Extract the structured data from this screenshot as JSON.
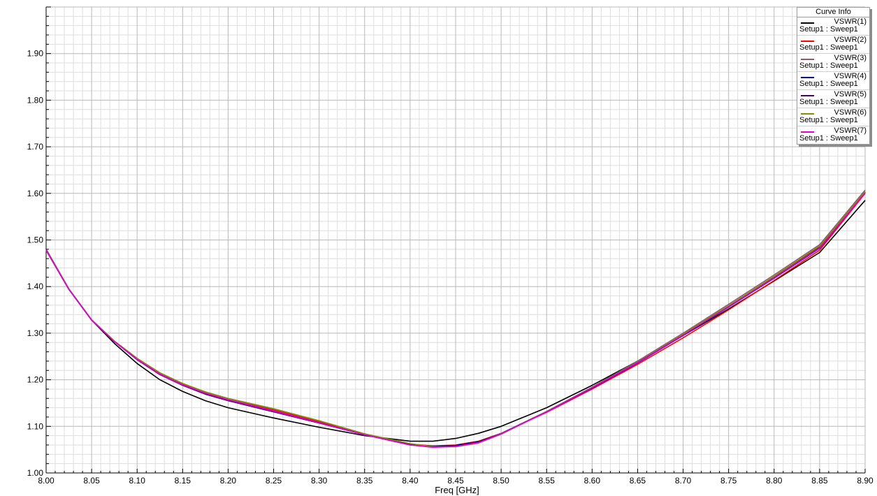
{
  "chart_data": {
    "type": "line",
    "xlabel": "Freq [GHz]",
    "ylabel": "",
    "xlim": [
      8.0,
      8.9
    ],
    "ylim": [
      1.0,
      2.0
    ],
    "x_ticks": [
      "8.00",
      "8.05",
      "8.10",
      "8.15",
      "8.20",
      "8.25",
      "8.30",
      "8.35",
      "8.40",
      "8.45",
      "8.50",
      "8.55",
      "8.60",
      "8.65",
      "8.70",
      "8.75",
      "8.80",
      "8.85",
      "8.90"
    ],
    "y_ticks": [
      "1.00",
      "1.10",
      "1.20",
      "1.30",
      "1.40",
      "1.50",
      "1.60",
      "1.70",
      "1.80",
      "1.90"
    ],
    "grid": true,
    "legend": {
      "title": "Curve Info",
      "position": "top-right"
    },
    "x": [
      8.0,
      8.025,
      8.05,
      8.075,
      8.1,
      8.125,
      8.15,
      8.175,
      8.2,
      8.25,
      8.3,
      8.35,
      8.4,
      8.425,
      8.45,
      8.475,
      8.5,
      8.55,
      8.6,
      8.65,
      8.7,
      8.75,
      8.8,
      8.85,
      8.9
    ],
    "series": [
      {
        "name": "VSWR(1)",
        "sub": "Setup1 : Sweep1",
        "color": "#000000",
        "values": [
          1.48,
          1.395,
          1.328,
          1.278,
          1.235,
          1.2,
          1.175,
          1.155,
          1.14,
          1.118,
          1.098,
          1.08,
          1.068,
          1.068,
          1.074,
          1.085,
          1.1,
          1.14,
          1.188,
          1.24,
          1.295,
          1.352,
          1.412,
          1.473,
          1.585
        ]
      },
      {
        "name": "VSWR(2)",
        "sub": "Setup1 : Sweep1",
        "color": "#ff0000",
        "values": [
          1.478,
          1.394,
          1.328,
          1.282,
          1.245,
          1.213,
          1.19,
          1.172,
          1.158,
          1.135,
          1.11,
          1.083,
          1.062,
          1.058,
          1.06,
          1.068,
          1.085,
          1.13,
          1.18,
          1.233,
          1.29,
          1.35,
          1.413,
          1.478,
          1.6
        ]
      },
      {
        "name": "VSWR(3)",
        "sub": "Setup1 : Sweep1",
        "color": "#8b5a6b",
        "values": [
          1.479,
          1.395,
          1.329,
          1.283,
          1.246,
          1.214,
          1.192,
          1.173,
          1.159,
          1.137,
          1.112,
          1.084,
          1.062,
          1.057,
          1.058,
          1.066,
          1.085,
          1.132,
          1.184,
          1.24,
          1.3,
          1.362,
          1.425,
          1.49,
          1.607
        ]
      },
      {
        "name": "VSWR(4)",
        "sub": "Setup1 : Sweep1",
        "color": "#00008b",
        "values": [
          1.478,
          1.394,
          1.328,
          1.282,
          1.244,
          1.212,
          1.189,
          1.17,
          1.156,
          1.132,
          1.108,
          1.082,
          1.061,
          1.057,
          1.059,
          1.067,
          1.084,
          1.131,
          1.182,
          1.236,
          1.295,
          1.356,
          1.418,
          1.482,
          1.602
        ]
      },
      {
        "name": "VSWR(5)",
        "sub": "Setup1 : Sweep1",
        "color": "#4b0060",
        "values": [
          1.478,
          1.394,
          1.328,
          1.282,
          1.243,
          1.211,
          1.188,
          1.169,
          1.155,
          1.131,
          1.107,
          1.082,
          1.06,
          1.056,
          1.057,
          1.066,
          1.084,
          1.131,
          1.183,
          1.238,
          1.297,
          1.358,
          1.42,
          1.485,
          1.603
        ]
      },
      {
        "name": "VSWR(6)",
        "sub": "Setup1 : Sweep1",
        "color": "#8b8b00",
        "values": [
          1.479,
          1.395,
          1.329,
          1.283,
          1.246,
          1.215,
          1.192,
          1.174,
          1.16,
          1.138,
          1.112,
          1.084,
          1.063,
          1.056,
          1.056,
          1.064,
          1.083,
          1.131,
          1.183,
          1.238,
          1.298,
          1.359,
          1.422,
          1.487,
          1.604
        ]
      },
      {
        "name": "VSWR(7)",
        "sub": "Setup1 : Sweep1",
        "color": "#e000e0",
        "values": [
          1.478,
          1.394,
          1.328,
          1.282,
          1.244,
          1.212,
          1.189,
          1.171,
          1.157,
          1.133,
          1.108,
          1.082,
          1.06,
          1.055,
          1.057,
          1.065,
          1.084,
          1.131,
          1.183,
          1.237,
          1.296,
          1.357,
          1.419,
          1.483,
          1.601
        ]
      }
    ]
  }
}
